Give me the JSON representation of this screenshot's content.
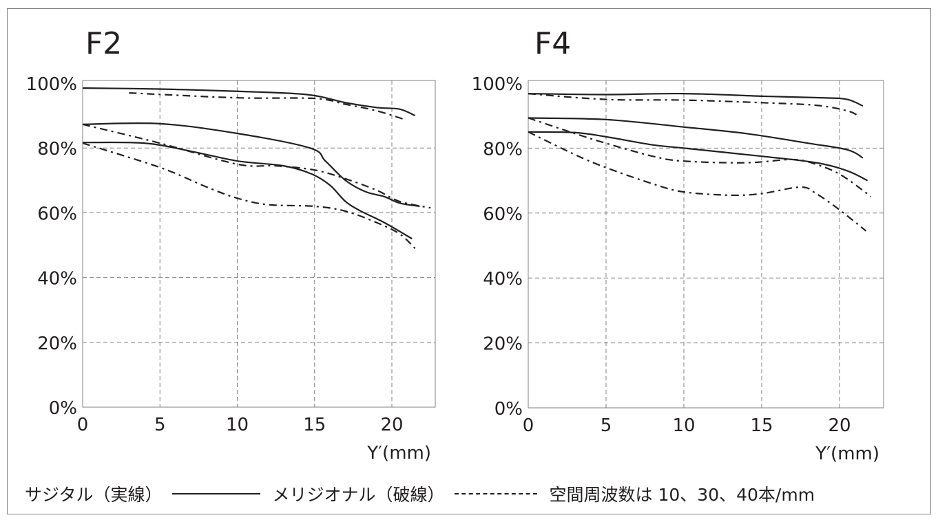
{
  "legend": {
    "sagittal": "サジタル（実線）",
    "meridional": "メリジオナル（破線）",
    "frequencies": "空間周波数は 10、30、40本/mm"
  },
  "colors": {
    "line": "#231f20",
    "grid": "#808080",
    "frame": "#808080"
  },
  "chart_data": [
    {
      "type": "line",
      "title": "F2",
      "xlabel": "Y′(mm)",
      "ylabel": "",
      "xlim": [
        0,
        22.8
      ],
      "ylim": [
        0,
        100
      ],
      "xticks": [
        "0",
        "5",
        "10",
        "15",
        "20"
      ],
      "yticks": [
        "0%",
        "20%",
        "40%",
        "60%",
        "80%",
        "100%"
      ],
      "grid": true,
      "series": [
        {
          "style": "solid",
          "points": [
            [
              0,
              98.5
            ],
            [
              5,
              98.2
            ],
            [
              10,
              97.5
            ],
            [
              14.5,
              96.5
            ],
            [
              17,
              94
            ],
            [
              19,
              92.5
            ],
            [
              20.5,
              92
            ],
            [
              21.5,
              90
            ]
          ]
        },
        {
          "style": "dashed",
          "points": [
            [
              3,
              97
            ],
            [
              10,
              95.5
            ],
            [
              15,
              95.3
            ],
            [
              17,
              93.5
            ],
            [
              19,
              91.5
            ],
            [
              20.7,
              89
            ]
          ]
        },
        {
          "style": "solid",
          "points": [
            [
              0,
              87.3
            ],
            [
              5,
              87.5
            ],
            [
              10,
              84.5
            ],
            [
              14.7,
              80
            ],
            [
              15.7,
              76
            ],
            [
              17,
              70
            ],
            [
              18.3,
              66.5
            ],
            [
              19.5,
              65
            ],
            [
              20.5,
              63
            ],
            [
              21.8,
              62
            ]
          ]
        },
        {
          "style": "dashed",
          "points": [
            [
              0,
              87.3
            ],
            [
              5,
              81.5
            ],
            [
              10,
              75
            ],
            [
              12.5,
              74.5
            ],
            [
              15,
              73.2
            ],
            [
              17,
              70.5
            ],
            [
              19,
              67
            ],
            [
              20.5,
              63.5
            ],
            [
              22.5,
              61.5
            ]
          ]
        },
        {
          "style": "solid",
          "points": [
            [
              0,
              81.7
            ],
            [
              4,
              81.5
            ],
            [
              7,
              79
            ],
            [
              10,
              76
            ],
            [
              13,
              74.5
            ],
            [
              14.8,
              72
            ],
            [
              16,
              68.5
            ],
            [
              17,
              63.5
            ],
            [
              18,
              60.5
            ],
            [
              19.5,
              57
            ],
            [
              21.3,
              52
            ]
          ]
        },
        {
          "style": "dashed",
          "points": [
            [
              0,
              81.5
            ],
            [
              5,
              74
            ],
            [
              8,
              68
            ],
            [
              10,
              64.5
            ],
            [
              12,
              62.5
            ],
            [
              15,
              62
            ],
            [
              17,
              60.5
            ],
            [
              19,
              57
            ],
            [
              20.5,
              53.5
            ],
            [
              21.5,
              49
            ]
          ]
        }
      ]
    },
    {
      "type": "line",
      "title": "F4",
      "xlabel": "Y′(mm)",
      "ylabel": "",
      "xlim": [
        0,
        22.8
      ],
      "ylim": [
        0,
        100
      ],
      "xticks": [
        "0",
        "5",
        "10",
        "15",
        "20"
      ],
      "yticks": [
        "0%",
        "20%",
        "40%",
        "60%",
        "80%",
        "100%"
      ],
      "grid": true,
      "series": [
        {
          "style": "solid",
          "points": [
            [
              0,
              96.8
            ],
            [
              5,
              96.5
            ],
            [
              10,
              96.8
            ],
            [
              15,
              96
            ],
            [
              19,
              95.5
            ],
            [
              20.5,
              95
            ],
            [
              21.5,
              93
            ]
          ]
        },
        {
          "style": "dashed",
          "points": [
            [
              0,
              96.8
            ],
            [
              5,
              95
            ],
            [
              10,
              94.8
            ],
            [
              15,
              94
            ],
            [
              18.5,
              93.2
            ],
            [
              20.5,
              91.5
            ],
            [
              21.2,
              90
            ]
          ]
        },
        {
          "style": "solid",
          "points": [
            [
              0,
              89.3
            ],
            [
              5,
              88.8
            ],
            [
              10,
              86.5
            ],
            [
              14,
              84.5
            ],
            [
              18,
              81.5
            ],
            [
              20.5,
              79.5
            ],
            [
              21.5,
              77
            ]
          ]
        },
        {
          "style": "dashed",
          "points": [
            [
              0,
              89.3
            ],
            [
              3,
              84.5
            ],
            [
              5,
              81.5
            ],
            [
              8,
              77.5
            ],
            [
              10,
              76
            ],
            [
              14,
              75.5
            ],
            [
              17,
              76.5
            ],
            [
              18.5,
              75
            ],
            [
              20,
              72
            ],
            [
              21.5,
              67
            ],
            [
              22,
              65
            ]
          ]
        },
        {
          "style": "solid",
          "points": [
            [
              0,
              85
            ],
            [
              3,
              84.8
            ],
            [
              5,
              83.5
            ],
            [
              8,
              81
            ],
            [
              10,
              80
            ],
            [
              15,
              77.5
            ],
            [
              18.5,
              75.5
            ],
            [
              20.5,
              73
            ],
            [
              21.8,
              70
            ]
          ]
        },
        {
          "style": "dashed",
          "points": [
            [
              0,
              85
            ],
            [
              3,
              78
            ],
            [
              5,
              74
            ],
            [
              8,
              69
            ],
            [
              10,
              66.5
            ],
            [
              13,
              65.5
            ],
            [
              15,
              66
            ],
            [
              17.5,
              68
            ],
            [
              18.5,
              66
            ],
            [
              20,
              61
            ],
            [
              21.7,
              54.5
            ]
          ]
        }
      ]
    }
  ]
}
